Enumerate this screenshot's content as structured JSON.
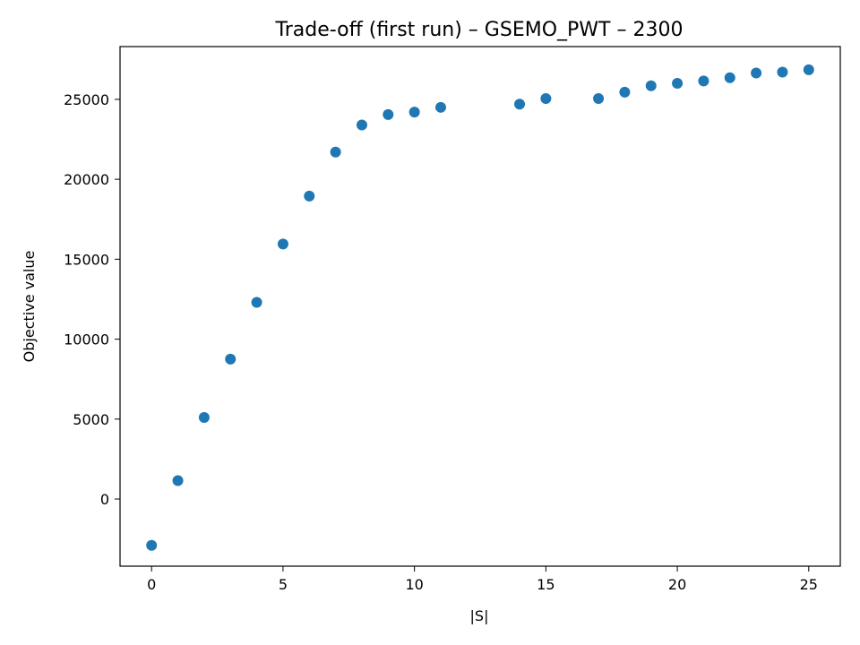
{
  "chart_data": {
    "type": "scatter",
    "title": "Trade-off (first run) – GSEMO_PWT – 2300",
    "xlabel": "|S|",
    "ylabel": "Objective value",
    "xlim": [
      -1.2,
      26.2
    ],
    "ylim": [
      -4200,
      28300
    ],
    "xticks": [
      0,
      5,
      10,
      15,
      20,
      25
    ],
    "yticks": [
      0,
      5000,
      10000,
      15000,
      20000,
      25000
    ],
    "grid": false,
    "marker_color": "#1f77b4",
    "points": [
      {
        "x": 0,
        "y": -2900
      },
      {
        "x": 1,
        "y": 1150
      },
      {
        "x": 2,
        "y": 5100
      },
      {
        "x": 3,
        "y": 8750
      },
      {
        "x": 4,
        "y": 12300
      },
      {
        "x": 5,
        "y": 15950
      },
      {
        "x": 6,
        "y": 18950
      },
      {
        "x": 7,
        "y": 21700
      },
      {
        "x": 8,
        "y": 23400
      },
      {
        "x": 9,
        "y": 24050
      },
      {
        "x": 10,
        "y": 24200
      },
      {
        "x": 11,
        "y": 24500
      },
      {
        "x": 14,
        "y": 24700
      },
      {
        "x": 15,
        "y": 25050
      },
      {
        "x": 17,
        "y": 25050
      },
      {
        "x": 18,
        "y": 25450
      },
      {
        "x": 19,
        "y": 25850
      },
      {
        "x": 20,
        "y": 26000
      },
      {
        "x": 21,
        "y": 26150
      },
      {
        "x": 22,
        "y": 26350
      },
      {
        "x": 23,
        "y": 26650
      },
      {
        "x": 24,
        "y": 26700
      },
      {
        "x": 25,
        "y": 26850
      }
    ]
  }
}
